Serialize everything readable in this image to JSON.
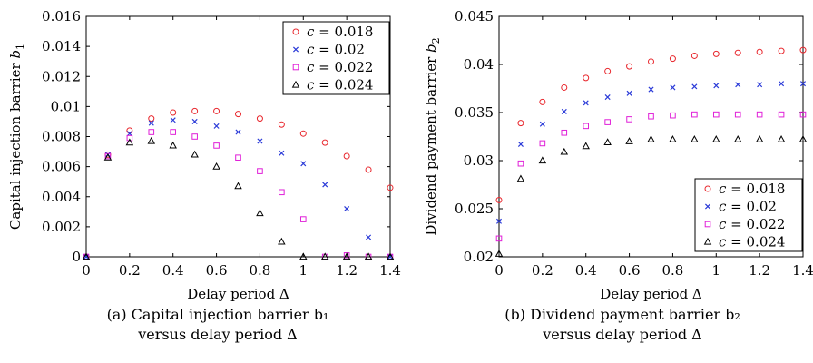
{
  "captions": [
    {
      "line1": "(a) Capital injection barrier b₁",
      "line2": "versus delay period Δ"
    },
    {
      "line1": "(b) Dividend payment barrier b₂",
      "line2": "versus delay period Δ"
    }
  ],
  "chart_data": [
    {
      "type": "scatter",
      "ylabel": "Capital injection barrier b₁",
      "xlabel": "Delay period Δ",
      "xlim": [
        0,
        1.4
      ],
      "ylim": [
        0,
        0.016
      ],
      "xticks": [
        0,
        0.2,
        0.4,
        0.6,
        0.8,
        1,
        1.2,
        1.4
      ],
      "xtick_labels": [
        "0",
        "0.2",
        "0.4",
        "0.6",
        "0.8",
        "1",
        "1.2",
        "1.4"
      ],
      "yticks": [
        0,
        0.002,
        0.004,
        0.006,
        0.008,
        0.01,
        0.012,
        0.014,
        0.016
      ],
      "ytick_labels": [
        "0",
        "0.002",
        "0.004",
        "0.006",
        "0.008",
        "0.01",
        "0.012",
        "0.014",
        "0.016"
      ],
      "legend_position": "top-right",
      "x": [
        0,
        0.1,
        0.2,
        0.3,
        0.4,
        0.5,
        0.6,
        0.7,
        0.8,
        0.9,
        1.0,
        1.1,
        1.2,
        1.3,
        1.4
      ],
      "series": [
        {
          "name": "c = 0.018",
          "marker": "circle",
          "color": "#e8262c",
          "values": [
            0,
            0.0068,
            0.0084,
            0.0092,
            0.0096,
            0.0097,
            0.0097,
            0.0095,
            0.0092,
            0.0088,
            0.0082,
            0.0076,
            0.0067,
            0.0058,
            0.0046
          ]
        },
        {
          "name": "c = 0.02",
          "marker": "x",
          "color": "#2b3bd8",
          "values": [
            0,
            0.0068,
            0.0082,
            0.0089,
            0.0091,
            0.009,
            0.0087,
            0.0083,
            0.0077,
            0.0069,
            0.0062,
            0.0048,
            0.0032,
            0.0013,
            0
          ]
        },
        {
          "name": "c = 0.022",
          "marker": "square",
          "color": "#e020d8",
          "values": [
            0,
            0.0067,
            0.0079,
            0.0083,
            0.0083,
            0.008,
            0.0074,
            0.0066,
            0.0057,
            0.0043,
            0.0025,
            0,
            0.0001,
            0,
            0
          ]
        },
        {
          "name": "c = 0.024",
          "marker": "triangle",
          "color": "#000000",
          "values": [
            0,
            0.0066,
            0.0076,
            0.0077,
            0.0074,
            0.0068,
            0.006,
            0.0047,
            0.0029,
            0.001,
            0,
            0,
            0,
            0,
            0
          ]
        }
      ]
    },
    {
      "type": "scatter",
      "ylabel": "Dividend payment barrier b₂",
      "xlabel": "Delay period Δ",
      "xlim": [
        0,
        1.4
      ],
      "ylim": [
        0.02,
        0.045
      ],
      "xticks": [
        0,
        0.2,
        0.4,
        0.6,
        0.8,
        1,
        1.2,
        1.4
      ],
      "xtick_labels": [
        "0",
        "0.2",
        "0.4",
        "0.6",
        "0.8",
        "1",
        "1.2",
        "1.4"
      ],
      "yticks": [
        0.02,
        0.025,
        0.03,
        0.035,
        0.04,
        0.045
      ],
      "ytick_labels": [
        "0.02",
        "0.025",
        "0.03",
        "0.035",
        "0.04",
        "0.045"
      ],
      "legend_position": "bottom-right",
      "x": [
        0,
        0.1,
        0.2,
        0.3,
        0.4,
        0.5,
        0.6,
        0.7,
        0.8,
        0.9,
        1.0,
        1.1,
        1.2,
        1.3,
        1.4
      ],
      "series": [
        {
          "name": "c = 0.018",
          "marker": "circle",
          "color": "#e8262c",
          "values": [
            0.0259,
            0.0339,
            0.0361,
            0.0376,
            0.0386,
            0.0393,
            0.0398,
            0.0403,
            0.0406,
            0.0409,
            0.0411,
            0.0412,
            0.0413,
            0.0414,
            0.0415
          ]
        },
        {
          "name": "c = 0.02",
          "marker": "x",
          "color": "#2b3bd8",
          "values": [
            0.0237,
            0.0317,
            0.0338,
            0.0351,
            0.036,
            0.0366,
            0.037,
            0.0374,
            0.0376,
            0.0377,
            0.0378,
            0.0379,
            0.0379,
            0.038,
            0.038
          ]
        },
        {
          "name": "c = 0.022",
          "marker": "square",
          "color": "#e020d8",
          "values": [
            0.0219,
            0.0297,
            0.0318,
            0.0329,
            0.0336,
            0.034,
            0.0343,
            0.0346,
            0.0347,
            0.0348,
            0.0348,
            0.0348,
            0.0348,
            0.0348,
            0.0348
          ]
        },
        {
          "name": "c = 0.024",
          "marker": "triangle",
          "color": "#000000",
          "values": [
            0.0203,
            0.0281,
            0.03,
            0.0309,
            0.0315,
            0.0319,
            0.032,
            0.0322,
            0.0322,
            0.0322,
            0.0322,
            0.0322,
            0.0322,
            0.0322,
            0.0322
          ]
        }
      ]
    }
  ]
}
